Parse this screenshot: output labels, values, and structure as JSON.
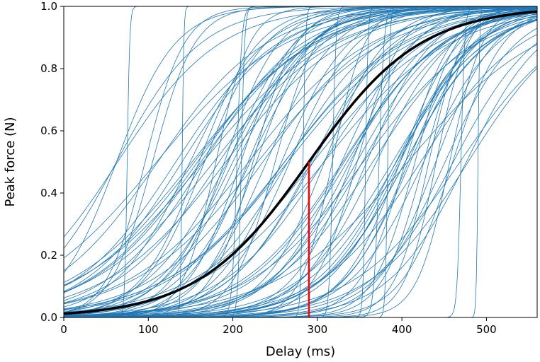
{
  "chart_data": {
    "type": "line",
    "title": "",
    "xlabel": "Delay (ms)",
    "ylabel": "Peak force (N)",
    "xlim": [
      0,
      560
    ],
    "ylim": [
      0,
      1.0
    ],
    "xticks": [
      0,
      100,
      200,
      300,
      400,
      500
    ],
    "xtick_labels": [
      "0",
      "100",
      "200",
      "300",
      "400",
      "500"
    ],
    "yticks": [
      0.0,
      0.2,
      0.4,
      0.6,
      0.8,
      1.0
    ],
    "ytick_labels": [
      "0.0",
      "0.2",
      "0.4",
      "0.6",
      "0.8",
      "1.0"
    ],
    "grid": false,
    "colors": {
      "samples": "#1f77b4",
      "mean": "#000000",
      "marker": "#ff0000"
    },
    "sample_curves": {
      "form": "logistic",
      "count": 100,
      "params": [
        {
          "mid": 75,
          "scale": 1.5
        },
        {
          "mid": 140,
          "scale": 1.0
        },
        {
          "mid": 210,
          "scale": 2.0
        },
        {
          "mid": 283,
          "scale": 1.5
        },
        {
          "mid": 318,
          "scale": 2.0
        },
        {
          "mid": 357,
          "scale": 1.5
        },
        {
          "mid": 490,
          "scale": 1.0
        },
        {
          "mid": 105,
          "scale": 25
        },
        {
          "mid": 160,
          "scale": 35
        },
        {
          "mid": 200,
          "scale": 45
        },
        {
          "mid": 240,
          "scale": 40
        },
        {
          "mid": 265,
          "scale": 55
        },
        {
          "mid": 295,
          "scale": 50
        },
        {
          "mid": 330,
          "scale": 60
        },
        {
          "mid": 370,
          "scale": 45
        },
        {
          "mid": 410,
          "scale": 40
        },
        {
          "mid": 440,
          "scale": 35
        },
        {
          "mid": 460,
          "scale": 30
        },
        {
          "mid": 180,
          "scale": 20
        },
        {
          "mid": 250,
          "scale": 25
        }
      ]
    },
    "mean_curve": {
      "form": "logistic",
      "mid": 290,
      "scale": 66
    },
    "marker_line": {
      "x": 290,
      "y0": 0.0,
      "y1": 0.5
    }
  }
}
